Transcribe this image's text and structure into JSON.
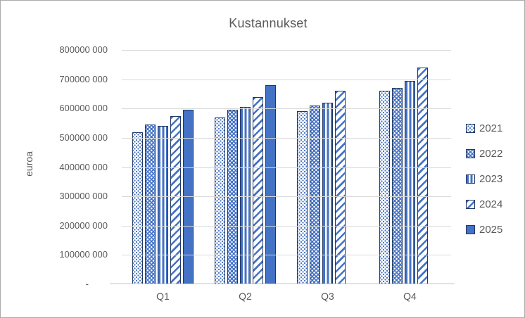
{
  "chart_data": {
    "type": "bar",
    "title": "Kustannukset",
    "ylabel": "euroa",
    "xlabel": "",
    "categories": [
      "Q1",
      "Q2",
      "Q3",
      "Q4"
    ],
    "series": [
      {
        "name": "2021",
        "pattern": "dots-light",
        "values": [
          520000000,
          570000000,
          590000000,
          660000000
        ]
      },
      {
        "name": "2022",
        "pattern": "dots-dense",
        "values": [
          545000000,
          595000000,
          610000000,
          670000000
        ]
      },
      {
        "name": "2023",
        "pattern": "vertical-stripes",
        "values": [
          540000000,
          605000000,
          620000000,
          695000000
        ]
      },
      {
        "name": "2024",
        "pattern": "diagonal-stripes",
        "values": [
          575000000,
          640000000,
          660000000,
          740000000
        ]
      },
      {
        "name": "2025",
        "pattern": "solid",
        "values": [
          595000000,
          680000000,
          null,
          null
        ]
      }
    ],
    "ylim": [
      0,
      800000000
    ],
    "ytick_interval": 100000000,
    "ytick_labels": [
      "800000 000",
      "700000 000",
      "600000 000",
      "500000 000",
      "400000 000",
      "300000 000",
      "200000 000",
      "100000 000",
      "-"
    ],
    "grid": true,
    "legend_position": "right",
    "colors": {
      "bar_fill": "#4472C4",
      "bar_border": "#1F3864",
      "gridline": "#D9D9D9",
      "axis_line": "#BFBFBF",
      "text": "#595959",
      "chart_border": "#ABABAB",
      "background": "#FFFFFF"
    }
  }
}
